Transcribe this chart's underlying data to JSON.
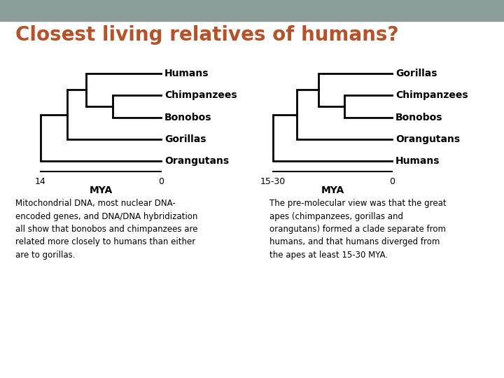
{
  "title": "Closest living relatives of humans?",
  "title_color": "#B5522A",
  "title_fontsize": 20,
  "header_color": "#8C9E9A",
  "bg_color": "#FFFFFF",
  "tree1": {
    "taxa": [
      "Humans",
      "Chimpanzees",
      "Bonobos",
      "Gorillas",
      "Orangutans"
    ],
    "axis_left": "14",
    "axis_right": "0",
    "axis_label": "MYA"
  },
  "tree2": {
    "taxa": [
      "Gorillas",
      "Chimpanzees",
      "Bonobos",
      "Orangutans",
      "Humans"
    ],
    "axis_left": "15-30",
    "axis_right": "0",
    "axis_label": "MYA"
  },
  "text_left": "Mitochondrial DNA, most nuclear DNA-\nencoded genes, and DNA/DNA hybridization\nall show that bonobos and chimpanzees are\nrelated more closely to humans than either\nare to gorillas.",
  "text_right": "The pre-molecular view was that the great\napes (chimpanzees, gorillas and\norangutans) formed a clade separate from\nhumans, and that humans diverged from\nthe apes at least 15-30 MYA.",
  "lw": 2.0
}
